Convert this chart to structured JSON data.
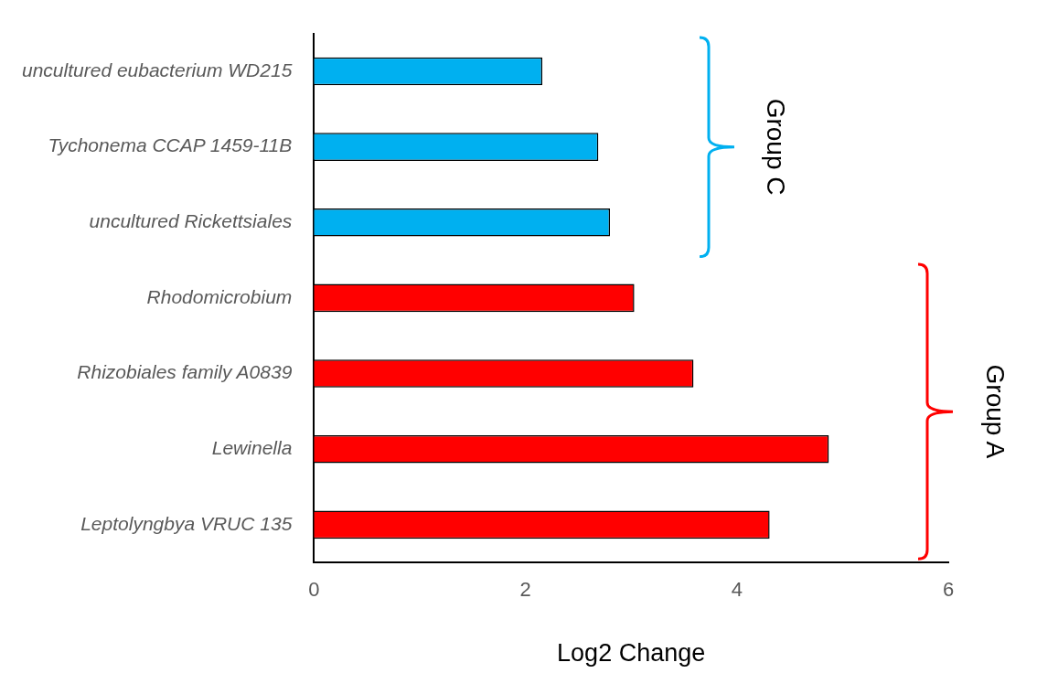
{
  "chart_data": {
    "type": "bar",
    "orientation": "horizontal",
    "xlabel": "Log2 Change",
    "categories": [
      "uncultured eubacterium WD215",
      "Tychonema CCAP 1459-11B",
      "uncultured Rickettsiales",
      "Rhodomicrobium",
      "Rhizobiales family A0839",
      "Lewinella",
      "Leptolyngbya VRUC 135"
    ],
    "values": [
      2.16,
      2.69,
      2.8,
      3.03,
      3.59,
      4.87,
      4.31
    ],
    "colors": [
      "#00b0f0",
      "#00b0f0",
      "#00b0f0",
      "#ff0000",
      "#ff0000",
      "#ff0000",
      "#ff0000"
    ],
    "xlim": [
      0,
      6
    ],
    "xticks": [
      0,
      2,
      4,
      6
    ],
    "grid": false,
    "legend": false,
    "annotations": [
      "Group C",
      "Group A"
    ]
  }
}
